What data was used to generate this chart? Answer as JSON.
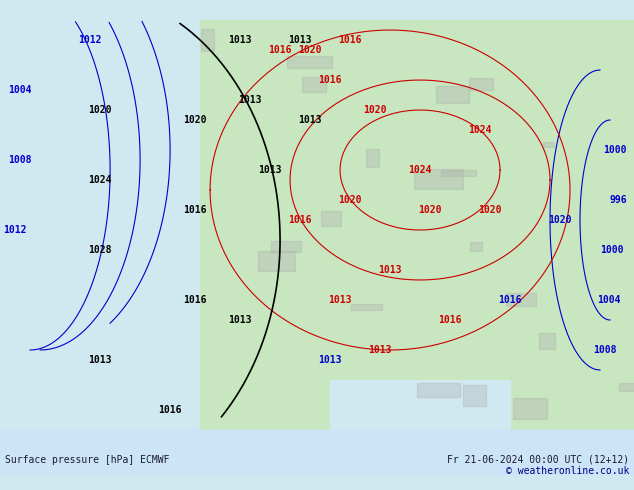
{
  "title_left": "Surface pressure [hPa] ECMWF",
  "title_right": "Fr 21-06-2024 00:00 UTC (12+12)",
  "copyright": "© weatheronline.co.uk",
  "bg_color": "#d0e8f0",
  "land_color": "#c8e6c0",
  "font_color_dark": "#1a1a2e",
  "contour_color_blue": "#0000cc",
  "contour_color_red": "#cc0000",
  "contour_color_black": "#000000",
  "footer_bg": "#ddeeff",
  "bottom_bar_color": "#b8d4e8"
}
